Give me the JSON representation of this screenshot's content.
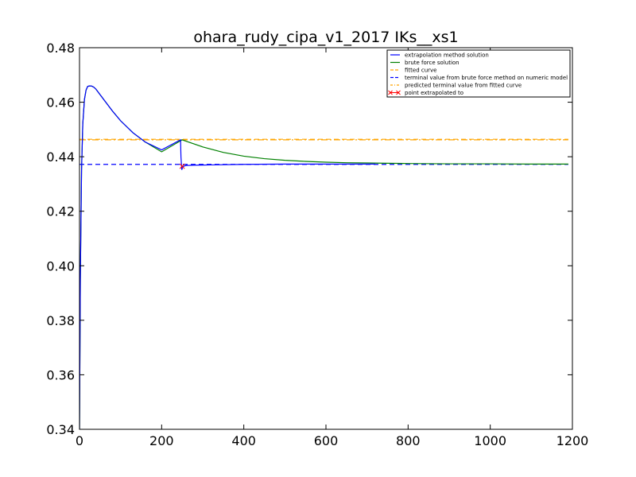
{
  "chart_data": {
    "type": "line",
    "title": "ohara_rudy_cipa_v1_2017 IKs__xs1",
    "xlim": [
      0,
      1200
    ],
    "ylim": [
      0.34,
      0.48
    ],
    "xticks": [
      0,
      200,
      400,
      600,
      800,
      1000,
      1200
    ],
    "xtick_labels": [
      "0",
      "200",
      "400",
      "600",
      "800",
      "1000",
      "1200"
    ],
    "yticks": [
      0.34,
      0.36,
      0.38,
      0.4,
      0.42,
      0.44,
      0.46,
      0.48
    ],
    "ytick_labels": [
      "0.34",
      "0.36",
      "0.38",
      "0.40",
      "0.42",
      "0.44",
      "0.46",
      "0.48"
    ],
    "grid": false,
    "legend_position": "top-right",
    "legend": [
      {
        "label": "extrapolation method solution",
        "color": "#0000ff",
        "style": "solid"
      },
      {
        "label": "brute force solution",
        "color": "#008000",
        "style": "solid"
      },
      {
        "label": "fitted curve",
        "color": "#ffa500",
        "style": "dashed"
      },
      {
        "label": "terminal value from brute force method on numeric model",
        "color": "#0000ff",
        "style": "dashed"
      },
      {
        "label": "predicted terminal value from fitted curve",
        "color": "#ffa500",
        "style": "dashdot"
      },
      {
        "label": "point extrapolated to",
        "color": "#ff0000",
        "style": "x-marker"
      }
    ],
    "series": [
      {
        "label": "brute force solution",
        "color": "#008000",
        "x": [
          0,
          2,
          5,
          8,
          12,
          16,
          20,
          25,
          30,
          35,
          40,
          50,
          60,
          80,
          100,
          130,
          160,
          200,
          250,
          300,
          350,
          400,
          450,
          500,
          550,
          600,
          650,
          700,
          750,
          800,
          900,
          1000,
          1100,
          1190
        ],
        "y": [
          0.34,
          0.395,
          0.435,
          0.452,
          0.461,
          0.4645,
          0.4658,
          0.466,
          0.4659,
          0.4655,
          0.4648,
          0.4628,
          0.4608,
          0.4568,
          0.4532,
          0.4488,
          0.4454,
          0.4418,
          0.4462,
          0.4436,
          0.4416,
          0.4402,
          0.4393,
          0.4387,
          0.4383,
          0.438,
          0.4378,
          0.4377,
          0.4376,
          0.4375,
          0.4374,
          0.4374,
          0.4373,
          0.4373
        ]
      },
      {
        "label": "extrapolation method solution",
        "color": "#0000ff",
        "x": [
          0,
          2,
          5,
          8,
          12,
          16,
          20,
          25,
          30,
          35,
          40,
          50,
          60,
          80,
          100,
          130,
          160,
          200,
          246,
          247,
          249,
          250,
          252,
          255,
          260,
          280,
          320,
          400,
          500,
          600,
          720
        ],
        "y": [
          0.34,
          0.395,
          0.435,
          0.452,
          0.461,
          0.4645,
          0.4658,
          0.466,
          0.4659,
          0.4655,
          0.4648,
          0.4628,
          0.4608,
          0.4568,
          0.4532,
          0.4488,
          0.4454,
          0.4425,
          0.4462,
          0.44,
          0.4352,
          0.4357,
          0.4363,
          0.4366,
          0.4368,
          0.4369,
          0.437,
          0.4372,
          0.4373,
          0.4373,
          0.4373
        ]
      }
    ],
    "hlines": [
      {
        "label": "terminal value from brute force method on numeric model",
        "y": 0.4372,
        "x0": 0,
        "x1": 1190,
        "color": "#0000ff",
        "style": "dashed"
      },
      {
        "label": "predicted terminal value from fitted curve",
        "y": 0.4462,
        "x0": 0,
        "x1": 1190,
        "color": "#ffa500",
        "style": "dashdot"
      },
      {
        "label": "fitted curve",
        "y": 0.4464,
        "x0": 0,
        "x1": 1190,
        "color": "#ffa500",
        "style": "dashed"
      }
    ],
    "markers": [
      {
        "label": "point extrapolated to",
        "x": 250,
        "y": 0.4365,
        "color": "#ff0000",
        "shape": "x"
      }
    ]
  }
}
